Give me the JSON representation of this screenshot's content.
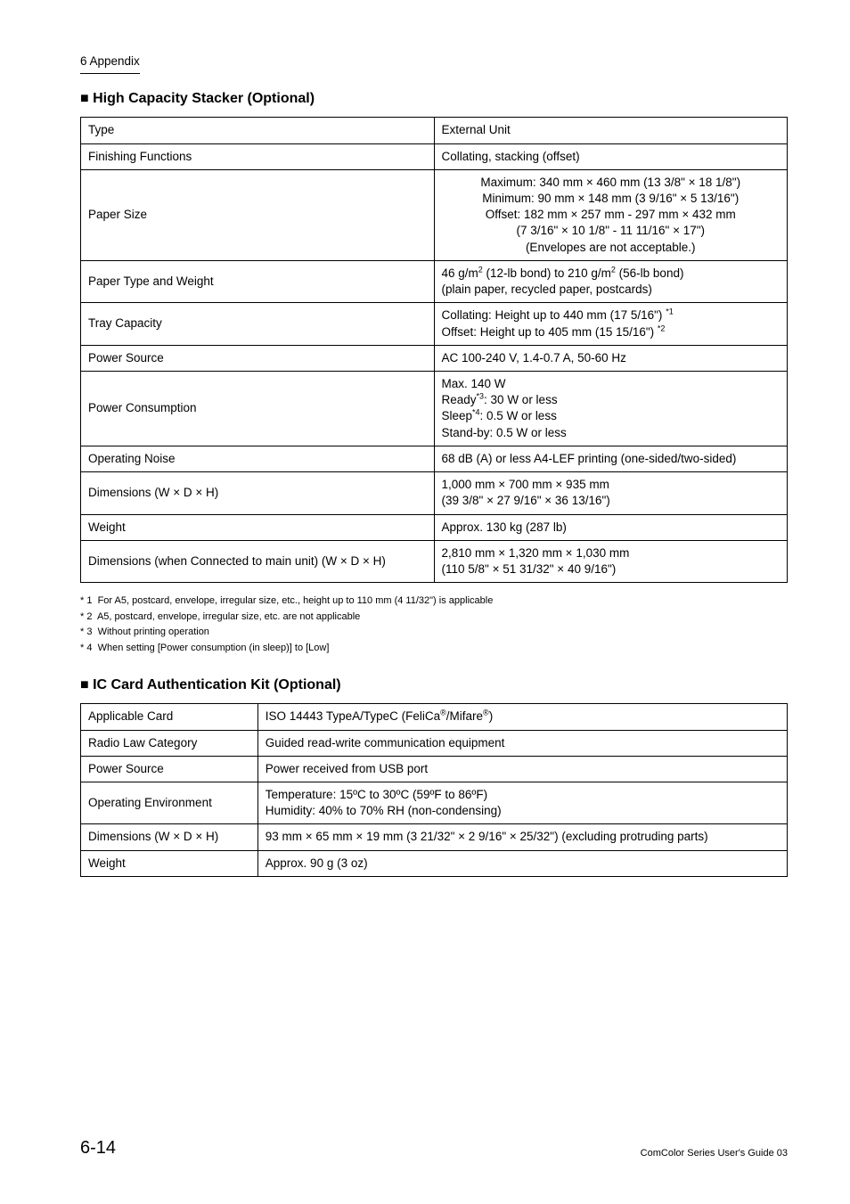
{
  "header": {
    "chapter": "6 Appendix"
  },
  "footer": {
    "page": "6-14",
    "text": "ComColor Series User's Guide 03"
  },
  "section1": {
    "title": "High Capacity Stacker (Optional)",
    "rows": [
      {
        "name": "Type",
        "value_html": "External Unit"
      },
      {
        "name": "Finishing Functions",
        "value_html": "Collating, stacking (offset)"
      },
      {
        "name": "Paper Size",
        "value_html": "Maximum: 340 mm × 460 mm (13 3/8\" × 18 1/8\")<br>Minimum: 90 mm × 148 mm (3 9/16\" × 5 13/16\")<br>Offset: 182 mm × 257 mm - 297 mm × 432 mm<br>(7 3/16\" × 10 1/8\" - 11 11/16\" × 17\")<br>(Envelopes are not acceptable.)",
        "center": true
      },
      {
        "name": "Paper Type and Weight",
        "value_html": "46 g/m<sup>2</sup> (12-lb bond) to 210 g/m<sup>2</sup> (56-lb bond)<br>(plain paper, recycled paper, postcards)"
      },
      {
        "name": "Tray Capacity",
        "value_html": "Collating: Height up to 440 mm (17 5/16\") <sup>*1</sup><br>Offset: Height up to 405 mm (15 15/16\") <sup>*2</sup>"
      },
      {
        "name": "Power Source",
        "value_html": "AC 100-240 V, 1.4-0.7 A, 50-60 Hz"
      },
      {
        "name": "Power Consumption",
        "value_html": "Max. 140 W<br>Ready<sup>*3</sup>: 30 W or less<br>Sleep<sup>*4</sup>: 0.5 W or less<br>Stand-by: 0.5 W or less"
      },
      {
        "name": "Operating Noise",
        "value_html": "68 dB (A) or less A4-LEF printing (one-sided/two-sided)"
      },
      {
        "name": "Dimensions (W × D × H)",
        "value_html": "1,000 mm × 700 mm × 935 mm<br>(39 3/8\" × 27 9/16\" × 36 13/16\")"
      },
      {
        "name": "Weight",
        "value_html": "Approx. 130 kg (287 lb)"
      },
      {
        "name": "Dimensions (when Connected to main unit)  (W × D × H)",
        "value_html": "2,810 mm × 1,320 mm × 1,030 mm<br>(110 5/8\" × 51 31/32\" × 40 9/16\")"
      }
    ],
    "notes": [
      "1  For A5, postcard, envelope, irregular size, etc., height up to 110 mm (4 11/32\") is applicable",
      "2  A5, postcard, envelope, irregular size, etc. are not applicable",
      "3  Without printing operation",
      "4  When setting [Power consumption (in sleep)] to [Low]"
    ]
  },
  "section2": {
    "title": "IC Card Authentication Kit (Optional)",
    "rows": [
      {
        "name": "Applicable Card",
        "value_html": "ISO 14443 TypeA/TypeC (FeliCa<sup>®</sup>/Mifare<sup>®</sup>)"
      },
      {
        "name": "Radio Law Category",
        "value_html": "Guided read-write communication equipment"
      },
      {
        "name": "Power Source",
        "value_html": "Power received from USB port"
      },
      {
        "name": "Operating Environment",
        "value_html": "Temperature: 15ºC to 30ºC (59ºF to 86ºF)<br>Humidity: 40% to 70% RH (non-condensing)"
      },
      {
        "name": "Dimensions (W × D × H)",
        "value_html": "93 mm × 65 mm × 19 mm (3 21/32\" × 2 9/16\" ×  25/32\") (excluding protruding parts)"
      },
      {
        "name": "Weight",
        "value_html": "Approx. 90 g (3 oz)"
      }
    ]
  }
}
